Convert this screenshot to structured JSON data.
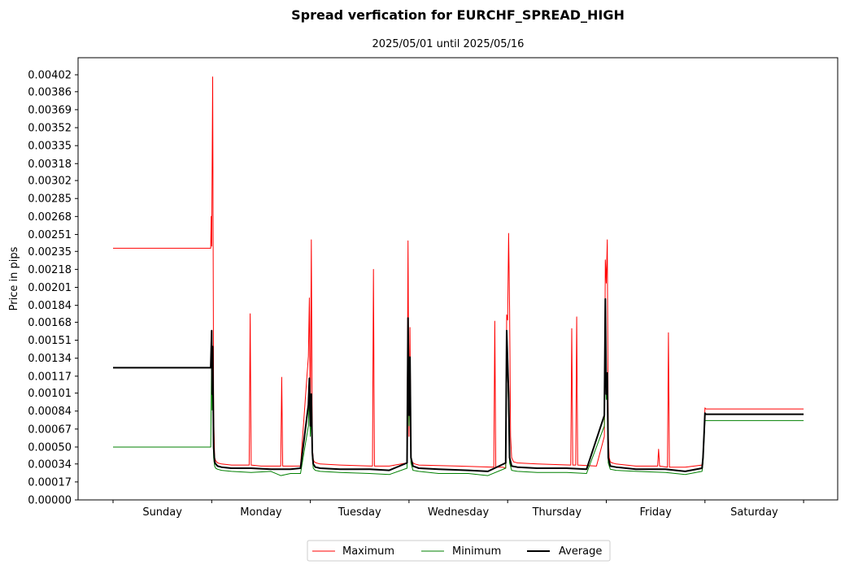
{
  "chart_data": {
    "type": "line",
    "title": "Spread verfication for EURCHF_SPREAD_HIGH",
    "subtitle": "2025/05/01 until 2025/05/16",
    "ylabel": "Price in pips",
    "xlabel": "",
    "x_range": [
      0,
      7
    ],
    "ylim": [
      0,
      0.0042
    ],
    "yticks": [
      "0.00000",
      "0.00017",
      "0.00034",
      "0.00050",
      "0.00067",
      "0.00084",
      "0.00101",
      "0.00117",
      "0.00134",
      "0.00151",
      "0.00168",
      "0.00184",
      "0.00201",
      "0.00218",
      "0.00235",
      "0.00251",
      "0.00268",
      "0.00285",
      "0.00302",
      "0.00318",
      "0.00335",
      "0.00352",
      "0.00369",
      "0.00386",
      "0.00402"
    ],
    "categories": [
      "Sunday",
      "Monday",
      "Tuesday",
      "Wednesday",
      "Thursday",
      "Friday",
      "Saturday"
    ],
    "grid": false,
    "legend_position": "bottom-center",
    "series": [
      {
        "name": "Maximum",
        "color": "#ff0000",
        "width": 1,
        "x": [
          0,
          0.99,
          0.995,
          1.0,
          1.01,
          1.02,
          1.03,
          1.04,
          1.06,
          1.1,
          1.2,
          1.38,
          1.39,
          1.4,
          1.5,
          1.7,
          1.71,
          1.72,
          1.9,
          1.98,
          1.99,
          2.0,
          2.01,
          2.02,
          2.03,
          2.04,
          2.06,
          2.1,
          2.3,
          2.63,
          2.64,
          2.65,
          2.8,
          2.98,
          2.99,
          3.0,
          3.01,
          3.02,
          3.03,
          3.04,
          3.06,
          3.1,
          3.5,
          3.86,
          3.87,
          3.88,
          3.95,
          3.98,
          3.99,
          4.0,
          4.01,
          4.02,
          4.03,
          4.04,
          4.06,
          4.1,
          4.3,
          4.64,
          4.65,
          4.66,
          4.69,
          4.7,
          4.71,
          4.9,
          4.98,
          4.99,
          5.0,
          5.01,
          5.02,
          5.03,
          5.04,
          5.06,
          5.1,
          5.3,
          5.52,
          5.53,
          5.54,
          5.62,
          5.63,
          5.64,
          5.8,
          5.97,
          5.98,
          5.99,
          6.0,
          6.01,
          7.0
        ],
        "y": [
          0.00238,
          0.00238,
          0.00268,
          0.0024,
          0.004,
          0.0008,
          0.0004,
          0.00037,
          0.00035,
          0.00034,
          0.00033,
          0.00033,
          0.00176,
          0.00033,
          0.00032,
          0.00032,
          0.00116,
          0.00032,
          0.00032,
          0.00136,
          0.00191,
          0.00075,
          0.00246,
          0.0005,
          0.00038,
          0.00036,
          0.00035,
          0.00034,
          0.00033,
          0.00032,
          0.00218,
          0.00032,
          0.00032,
          0.00035,
          0.00245,
          0.0006,
          0.00163,
          0.0004,
          0.00036,
          0.00035,
          0.00034,
          0.00033,
          0.00032,
          0.00031,
          0.00169,
          0.00031,
          0.00031,
          0.0003,
          0.00175,
          0.0017,
          0.00252,
          0.0018,
          0.0006,
          0.0004,
          0.00036,
          0.00035,
          0.00034,
          0.00033,
          0.00162,
          0.00033,
          0.00033,
          0.00173,
          0.00033,
          0.00032,
          0.0006,
          0.00227,
          0.00205,
          0.00246,
          0.0006,
          0.0004,
          0.00036,
          0.00035,
          0.00034,
          0.00032,
          0.00032,
          0.00048,
          0.00032,
          0.00031,
          0.00158,
          0.00031,
          0.00031,
          0.00033,
          0.0004,
          0.0006,
          0.00087,
          0.00086,
          0.00086
        ]
      },
      {
        "name": "Minimum",
        "color": "#008000",
        "width": 1,
        "x": [
          0,
          0.99,
          1.0,
          1.005,
          1.01,
          1.02,
          1.03,
          1.04,
          1.06,
          1.1,
          1.2,
          1.4,
          1.6,
          1.7,
          1.8,
          1.9,
          1.98,
          1.99,
          2.0,
          2.01,
          2.02,
          2.03,
          2.05,
          2.1,
          2.3,
          2.6,
          2.8,
          2.98,
          2.99,
          3.0,
          3.01,
          3.02,
          3.04,
          3.1,
          3.3,
          3.6,
          3.8,
          3.98,
          3.99,
          4.0,
          4.01,
          4.02,
          4.04,
          4.1,
          4.3,
          4.6,
          4.8,
          4.98,
          4.99,
          5.0,
          5.01,
          5.02,
          5.04,
          5.1,
          5.3,
          5.6,
          5.8,
          5.97,
          5.98,
          5.99,
          6.0,
          6.01,
          7.0
        ],
        "y": [
          0.0005,
          0.0005,
          0.0014,
          0.00085,
          0.0011,
          0.0004,
          0.00032,
          0.0003,
          0.00029,
          0.00028,
          0.00027,
          0.00026,
          0.00027,
          0.00023,
          0.00025,
          0.00025,
          0.0007,
          0.001,
          0.0006,
          0.00095,
          0.0004,
          0.0003,
          0.00028,
          0.00027,
          0.00026,
          0.00025,
          0.00024,
          0.0003,
          0.0016,
          0.0007,
          0.0012,
          0.00035,
          0.00028,
          0.00027,
          0.00025,
          0.00025,
          0.00023,
          0.0003,
          0.0014,
          0.0012,
          0.0008,
          0.00035,
          0.00028,
          0.00027,
          0.00026,
          0.00026,
          0.00025,
          0.0007,
          0.0016,
          0.00095,
          0.0011,
          0.00035,
          0.00029,
          0.00028,
          0.00027,
          0.00026,
          0.00024,
          0.00027,
          0.00035,
          0.00055,
          0.00075,
          0.00075,
          0.00075
        ]
      },
      {
        "name": "Average",
        "color": "#000000",
        "width": 2,
        "x": [
          0,
          0.99,
          1.0,
          1.005,
          1.01,
          1.02,
          1.03,
          1.04,
          1.06,
          1.1,
          1.2,
          1.4,
          1.6,
          1.8,
          1.9,
          1.98,
          1.99,
          2.0,
          2.01,
          2.02,
          2.03,
          2.05,
          2.1,
          2.3,
          2.6,
          2.8,
          2.98,
          2.99,
          3.0,
          3.01,
          3.02,
          3.04,
          3.1,
          3.3,
          3.6,
          3.8,
          3.98,
          3.99,
          4.0,
          4.01,
          4.02,
          4.04,
          4.1,
          4.3,
          4.6,
          4.8,
          4.98,
          4.99,
          5.0,
          5.01,
          5.02,
          5.04,
          5.1,
          5.3,
          5.6,
          5.8,
          5.97,
          5.98,
          5.99,
          6.0,
          6.01,
          7.0
        ],
        "y": [
          0.00125,
          0.00125,
          0.0016,
          0.001,
          0.00145,
          0.0005,
          0.00036,
          0.00034,
          0.00032,
          0.00031,
          0.0003,
          0.0003,
          0.00029,
          0.00029,
          0.0003,
          0.0009,
          0.00115,
          0.0007,
          0.001,
          0.00045,
          0.00034,
          0.00031,
          0.0003,
          0.00029,
          0.00029,
          0.00028,
          0.00035,
          0.00172,
          0.0008,
          0.00135,
          0.0004,
          0.00032,
          0.0003,
          0.00029,
          0.00028,
          0.00027,
          0.00035,
          0.0016,
          0.0013,
          0.001,
          0.0004,
          0.00032,
          0.00031,
          0.0003,
          0.0003,
          0.00029,
          0.0008,
          0.0019,
          0.001,
          0.0012,
          0.0004,
          0.00032,
          0.00031,
          0.00029,
          0.00029,
          0.00027,
          0.0003,
          0.0004,
          0.0006,
          0.00082,
          0.00081,
          0.00081
        ]
      }
    ]
  }
}
